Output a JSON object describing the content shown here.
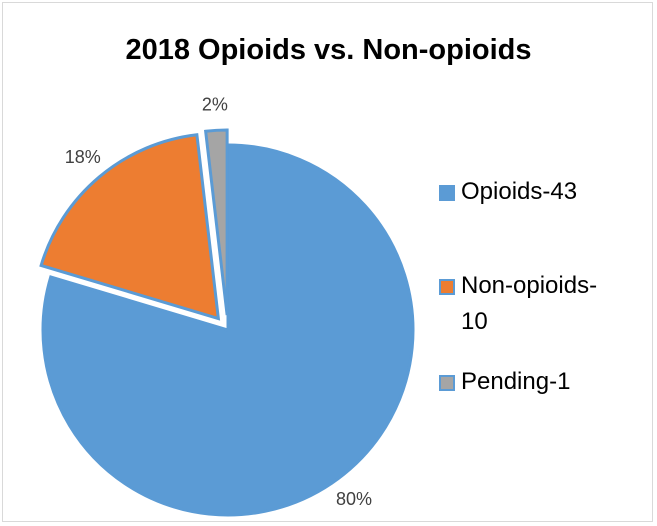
{
  "chart_data": {
    "type": "pie",
    "title": "2018 Opioids vs. Non-opioids",
    "slices": [
      {
        "label": "Opioids-43",
        "value": 43,
        "percent_label": "80%",
        "color": "#5b9bd5",
        "exploded": false
      },
      {
        "label": "Non-opioids-10",
        "value": 10,
        "percent_label": "18%",
        "color": "#ed7d31",
        "exploded": true
      },
      {
        "label": "Pending-1",
        "value": 1,
        "percent_label": "2%",
        "color": "#a5a5a5",
        "exploded": true
      }
    ],
    "legend_position": "right",
    "slice_border_color": "#5b9bd5"
  }
}
